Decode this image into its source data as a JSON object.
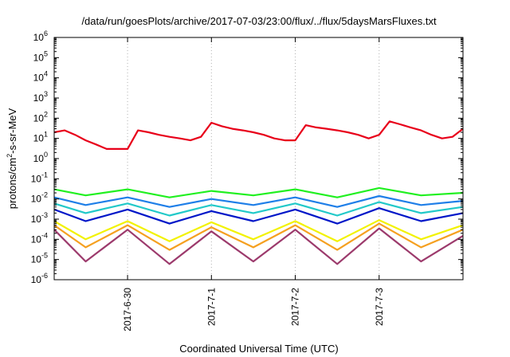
{
  "chart_data": {
    "type": "line",
    "title": "/data/run/goesPlots/archive/2017-07-03/23:00/flux/../flux/5daysMarsFluxes.txt",
    "xlabel": "Coordinated Universal Time (UTC)",
    "ylabel": "protons/cm²-s-sr-MeV",
    "y_scale": "log",
    "ylim": [
      1e-06,
      1000000.0
    ],
    "y_ticks": [
      {
        "exp": "-6",
        "value": 1e-06
      },
      {
        "exp": "-5",
        "value": 1e-05
      },
      {
        "exp": "-4",
        "value": 0.0001
      },
      {
        "exp": "-3",
        "value": 0.001
      },
      {
        "exp": "-2",
        "value": 0.01
      },
      {
        "exp": "-1",
        "value": 0.1
      },
      {
        "exp": "0",
        "value": 1
      },
      {
        "exp": "1",
        "value": 10
      },
      {
        "exp": "2",
        "value": 100
      },
      {
        "exp": "3",
        "value": 1000
      },
      {
        "exp": "4",
        "value": 10000
      },
      {
        "exp": "5",
        "value": 100000
      },
      {
        "exp": "6",
        "value": 1000000
      }
    ],
    "xlim": [
      "2017-06-29 03:00",
      "2017-07-04 00:00"
    ],
    "x_ticks": [
      "2017-6-30",
      "2017-7-1",
      "2017-7-2",
      "2017-7-3"
    ],
    "x_tick_dates": [
      "2017-06-30",
      "2017-07-01",
      "2017-07-02",
      "2017-07-03"
    ],
    "grid": true,
    "legend": "none",
    "series": [
      {
        "color": "#e8001a",
        "x": [
          "2017-06-29 03:00",
          "2017-06-29 06:00",
          "2017-06-29 09:00",
          "2017-06-29 12:00",
          "2017-06-29 15:00",
          "2017-06-29 18:00",
          "2017-06-29 21:00",
          "2017-06-30 00:00",
          "2017-06-30 03:00",
          "2017-06-30 06:00",
          "2017-06-30 09:00",
          "2017-06-30 12:00",
          "2017-06-30 15:00",
          "2017-06-30 18:00",
          "2017-06-30 21:00",
          "2017-07-01 00:00",
          "2017-07-01 03:00",
          "2017-07-01 06:00",
          "2017-07-01 09:00",
          "2017-07-01 12:00",
          "2017-07-01 15:00",
          "2017-07-01 18:00",
          "2017-07-01 21:00",
          "2017-07-02 00:00",
          "2017-07-02 03:00",
          "2017-07-02 06:00",
          "2017-07-02 09:00",
          "2017-07-02 12:00",
          "2017-07-02 15:00",
          "2017-07-02 18:00",
          "2017-07-02 21:00",
          "2017-07-03 00:00",
          "2017-07-03 03:00",
          "2017-07-03 06:00",
          "2017-07-03 09:00",
          "2017-07-03 12:00",
          "2017-07-03 15:00",
          "2017-07-03 18:00",
          "2017-07-03 21:00",
          "2017-07-04 00:00"
        ],
        "y": [
          20,
          25,
          15,
          8,
          5,
          3,
          3,
          3,
          25,
          20,
          15,
          12,
          10,
          8,
          12,
          60,
          40,
          30,
          25,
          20,
          15,
          10,
          8,
          8,
          45,
          35,
          30,
          25,
          20,
          15,
          10,
          15,
          70,
          50,
          35,
          25,
          15,
          10,
          12,
          30
        ]
      },
      {
        "color": "#21f021",
        "x": [
          "2017-06-29 03:00",
          "2017-06-29 12:00",
          "2017-06-30 00:00",
          "2017-06-30 12:00",
          "2017-07-01 00:00",
          "2017-07-01 12:00",
          "2017-07-02 00:00",
          "2017-07-02 12:00",
          "2017-07-03 00:00",
          "2017-07-03 12:00",
          "2017-07-04 00:00"
        ],
        "y": [
          0.03,
          0.015,
          0.03,
          0.012,
          0.025,
          0.015,
          0.03,
          0.012,
          0.035,
          0.015,
          0.02
        ]
      },
      {
        "color": "#1f7fe8",
        "x": [
          "2017-06-29 03:00",
          "2017-06-29 12:00",
          "2017-06-30 00:00",
          "2017-06-30 12:00",
          "2017-07-01 00:00",
          "2017-07-01 12:00",
          "2017-07-02 00:00",
          "2017-07-02 12:00",
          "2017-07-03 00:00",
          "2017-07-03 12:00",
          "2017-07-04 00:00"
        ],
        "y": [
          0.012,
          0.005,
          0.012,
          0.004,
          0.01,
          0.005,
          0.012,
          0.004,
          0.014,
          0.005,
          0.008
        ]
      },
      {
        "color": "#22c9c9",
        "x": [
          "2017-06-29 03:00",
          "2017-06-29 12:00",
          "2017-06-30 00:00",
          "2017-06-30 12:00",
          "2017-07-01 00:00",
          "2017-07-01 12:00",
          "2017-07-02 00:00",
          "2017-07-02 12:00",
          "2017-07-03 00:00",
          "2017-07-03 12:00",
          "2017-07-04 00:00"
        ],
        "y": [
          0.006,
          0.002,
          0.006,
          0.0015,
          0.005,
          0.002,
          0.006,
          0.0015,
          0.007,
          0.002,
          0.004
        ]
      },
      {
        "color": "#0016c8",
        "x": [
          "2017-06-29 03:00",
          "2017-06-29 12:00",
          "2017-06-30 00:00",
          "2017-06-30 12:00",
          "2017-07-01 00:00",
          "2017-07-01 12:00",
          "2017-07-02 00:00",
          "2017-07-02 12:00",
          "2017-07-03 00:00",
          "2017-07-03 12:00",
          "2017-07-04 00:00"
        ],
        "y": [
          0.003,
          0.0008,
          0.003,
          0.0006,
          0.0025,
          0.0008,
          0.003,
          0.0006,
          0.0035,
          0.0008,
          0.002
        ]
      },
      {
        "color": "#f2f200",
        "x": [
          "2017-06-29 03:00",
          "2017-06-29 12:00",
          "2017-06-30 00:00",
          "2017-06-30 12:00",
          "2017-07-01 00:00",
          "2017-07-01 12:00",
          "2017-07-02 00:00",
          "2017-07-02 12:00",
          "2017-07-03 00:00",
          "2017-07-03 12:00",
          "2017-07-04 00:00"
        ],
        "y": [
          0.0008,
          0.0001,
          0.0008,
          8e-05,
          0.0007,
          0.0001,
          0.0008,
          8e-05,
          0.0009,
          0.0001,
          0.0005
        ]
      },
      {
        "color": "#f5a020",
        "x": [
          "2017-06-29 03:00",
          "2017-06-29 12:00",
          "2017-06-30 00:00",
          "2017-06-30 12:00",
          "2017-07-01 00:00",
          "2017-07-01 12:00",
          "2017-07-02 00:00",
          "2017-07-02 12:00",
          "2017-07-03 00:00",
          "2017-07-03 12:00",
          "2017-07-04 00:00"
        ],
        "y": [
          0.0005,
          4e-05,
          0.0005,
          3e-05,
          0.0004,
          4e-05,
          0.0005,
          3e-05,
          0.0006,
          4e-05,
          0.0003
        ]
      },
      {
        "color": "#9c3a6c",
        "x": [
          "2017-06-29 03:00",
          "2017-06-29 12:00",
          "2017-06-30 00:00",
          "2017-06-30 12:00",
          "2017-07-01 00:00",
          "2017-07-01 12:00",
          "2017-07-02 00:00",
          "2017-07-02 12:00",
          "2017-07-03 00:00",
          "2017-07-03 12:00",
          "2017-07-04 00:00"
        ],
        "y": [
          0.0003,
          8e-06,
          0.0003,
          6e-06,
          0.00025,
          8e-06,
          0.0003,
          6e-06,
          0.00035,
          8e-06,
          0.00015
        ]
      }
    ]
  }
}
